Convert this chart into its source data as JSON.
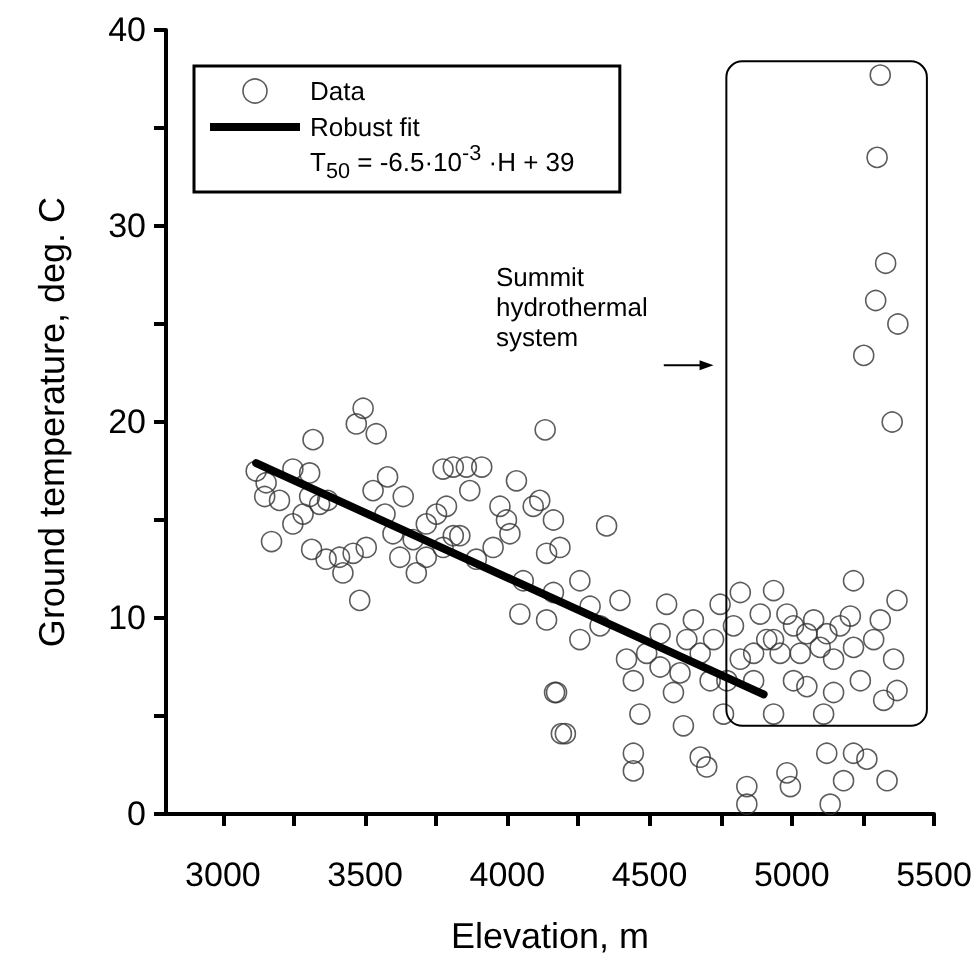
{
  "chart_data": {
    "type": "scatter",
    "xlabel": "Elevation, m",
    "ylabel": "Ground temperature, deg. C",
    "xlim": [
      2800,
      5500
    ],
    "xticks": [
      3000,
      {
        "value": 3250,
        "label": null
      },
      3500,
      {
        "value": 3750,
        "label": null
      },
      4000,
      {
        "value": 4250,
        "label": null
      },
      4500,
      {
        "value": 4750,
        "label": null
      },
      5000,
      {
        "value": 5250,
        "label": null
      },
      5500
    ],
    "ylim": [
      0,
      40
    ],
    "yticks": [
      0,
      {
        "value": 5,
        "label": null
      },
      10,
      {
        "value": 15,
        "label": null
      },
      20,
      {
        "value": 25,
        "label": null
      },
      30,
      {
        "value": 35,
        "label": null
      },
      40
    ],
    "grid": false,
    "legend": "top left",
    "annotations": [
      "T$_{50}$ =  -6.5·10$^{-3}$ ·H + 39",
      "Summit hydrothermal system"
    ],
    "series": [
      {
        "name": "Data",
        "color": "#333333",
        "marker": "circle",
        "x": [
          3117,
          3152,
          3147,
          3171,
          3246,
          3305,
          3317,
          3246,
          3282,
          3312,
          3305,
          3340,
          3368,
          3363,
          3410,
          3422,
          3458,
          3481,
          3469,
          3493,
          3539,
          3528,
          3579,
          3570,
          3598,
          3634,
          3622,
          3680,
          3669,
          3715,
          3751,
          3774,
          3786,
          3810,
          3856,
          3910,
          3868,
          3833,
          3891,
          3950,
          3997,
          4032,
          4009,
          4056,
          4044,
          4091,
          4133,
          4138,
          4166,
          4190,
          4162,
          4138,
          3199,
          3504,
          3715,
          3810,
          3974,
          3774,
          4114,
          4185,
          4255,
          4173,
          4204,
          4326,
          4349,
          4396,
          4419,
          4443,
          4443,
          4443,
          4466,
          4490,
          4537,
          4560,
          4584,
          4607,
          4619,
          4654,
          4678,
          4678,
          4701,
          4713,
          4748,
          4760,
          4795,
          4819,
          4842,
          4842,
          4866,
          4889,
          4912,
          4936,
          4936,
          4959,
          4983,
          4995,
          5006,
          5030,
          5053,
          5077,
          5100,
          5112,
          5123,
          5135,
          5147,
          5170,
          5182,
          5206,
          5217,
          5217,
          5241,
          5264,
          5288,
          5311,
          5323,
          5335,
          5358,
          5370,
          5370,
          4162,
          4255,
          4291,
          4537,
          4631,
          4725,
          4772,
          4819,
          4866,
          4936,
          4983,
          5006,
          5053,
          5123,
          5147,
          5217,
          5311,
          5300,
          5330,
          5295,
          5373,
          5253,
          5353
        ],
        "values": [
          17.5,
          16.9,
          16.2,
          13.9,
          17.6,
          17.4,
          19.1,
          14.8,
          15.3,
          13.5,
          16.2,
          15.8,
          16.0,
          13.0,
          13.1,
          12.3,
          13.3,
          10.9,
          19.9,
          20.7,
          19.4,
          16.5,
          17.2,
          15.3,
          14.3,
          16.2,
          13.1,
          12.3,
          14.0,
          14.8,
          15.3,
          13.6,
          15.7,
          17.7,
          17.7,
          17.7,
          16.5,
          14.2,
          13.0,
          13.6,
          15.0,
          17.0,
          14.3,
          11.9,
          10.2,
          15.7,
          19.6,
          13.3,
          6.2,
          4.1,
          11.3,
          9.9,
          16.0,
          13.6,
          13.1,
          14.2,
          15.7,
          17.6,
          16.0,
          13.6,
          11.9,
          6.2,
          4.1,
          9.6,
          14.7,
          10.9,
          7.9,
          6.8,
          3.1,
          2.2,
          5.1,
          8.2,
          9.2,
          10.7,
          6.2,
          7.2,
          4.5,
          9.9,
          8.2,
          2.9,
          2.4,
          6.8,
          10.7,
          5.1,
          9.6,
          7.9,
          1.4,
          0.5,
          6.8,
          10.2,
          8.9,
          11.4,
          5.1,
          8.2,
          2.1,
          1.4,
          9.6,
          8.2,
          6.5,
          9.9,
          8.5,
          5.1,
          3.1,
          0.5,
          7.9,
          9.6,
          1.7,
          10.1,
          11.9,
          3.1,
          6.8,
          2.8,
          8.9,
          9.9,
          5.8,
          1.7,
          7.9,
          10.9,
          6.3,
          15.0,
          8.9,
          10.6,
          7.5,
          8.9,
          8.9,
          6.8,
          11.3,
          8.2,
          8.9,
          10.2,
          6.8,
          9.2,
          9.2,
          6.2,
          8.5,
          37.7,
          33.5,
          28.1,
          26.2,
          25.0,
          23.4,
          20.0
        ]
      },
      {
        "name": "Robust fit",
        "type": "line",
        "color": "#000000",
        "line_style": "solid",
        "marker": "none",
        "x": [
          3117,
          4901
        ],
        "values": [
          17.9,
          6.1
        ]
      }
    ]
  }
}
